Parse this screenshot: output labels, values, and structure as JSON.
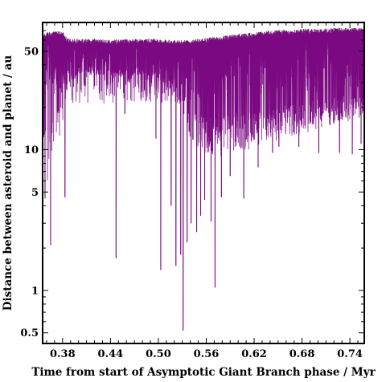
{
  "chart_data": {
    "type": "line",
    "title": "",
    "xlabel": "Time from start of Asymptotic Giant Branch phase / Myr",
    "ylabel": "Distance between asteroid and planet / au",
    "xlim": [
      0.355,
      0.758
    ],
    "ylim": [
      0.42,
      80
    ],
    "yscale": "log",
    "grid": false,
    "legend": "none",
    "x_ticks": [
      0.38,
      0.44,
      0.5,
      0.56,
      0.62,
      0.68,
      0.74
    ],
    "x_tick_labels": [
      "0.38",
      "0.44",
      "0.50",
      "0.56",
      "0.62",
      "0.68",
      "0.74"
    ],
    "y_ticks": [
      0.5,
      1,
      5,
      10,
      50
    ],
    "y_tick_labels": [
      "0.5",
      "1",
      "5",
      "10",
      "50"
    ],
    "series": [
      {
        "color": "#7b0a82",
        "envelope": {
          "x": [
            0.355,
            0.36,
            0.37,
            0.38,
            0.385,
            0.4,
            0.42,
            0.44,
            0.46,
            0.48,
            0.5,
            0.52,
            0.54,
            0.56,
            0.58,
            0.6,
            0.62,
            0.64,
            0.66,
            0.68,
            0.7,
            0.72,
            0.74,
            0.758
          ],
          "max": [
            65,
            68,
            69,
            70,
            62,
            61,
            61,
            60,
            61,
            61,
            61,
            60,
            60,
            62,
            64,
            66,
            68,
            70,
            71,
            72,
            72,
            73,
            73,
            73
          ],
          "min": [
            11,
            5,
            8,
            15,
            25,
            35,
            34,
            32,
            33,
            34,
            30,
            25,
            12,
            9,
            9,
            10,
            10,
            11,
            12,
            13,
            14,
            15,
            16,
            17
          ]
        },
        "dips": [
          {
            "x": 0.358,
            "y": 4.5
          },
          {
            "x": 0.365,
            "y": 2.1
          },
          {
            "x": 0.383,
            "y": 4.6
          },
          {
            "x": 0.447,
            "y": 1.7
          },
          {
            "x": 0.458,
            "y": 18
          },
          {
            "x": 0.497,
            "y": 12
          },
          {
            "x": 0.503,
            "y": 1.4
          },
          {
            "x": 0.516,
            "y": 4.0
          },
          {
            "x": 0.522,
            "y": 1.5
          },
          {
            "x": 0.528,
            "y": 1.8
          },
          {
            "x": 0.531,
            "y": 0.52
          },
          {
            "x": 0.536,
            "y": 2.2
          },
          {
            "x": 0.541,
            "y": 3.0
          },
          {
            "x": 0.548,
            "y": 2.6
          },
          {
            "x": 0.553,
            "y": 3.4
          },
          {
            "x": 0.558,
            "y": 4.4
          },
          {
            "x": 0.566,
            "y": 3.1
          },
          {
            "x": 0.571,
            "y": 1.05
          },
          {
            "x": 0.579,
            "y": 4.6
          },
          {
            "x": 0.59,
            "y": 6.5
          },
          {
            "x": 0.607,
            "y": 4.5
          },
          {
            "x": 0.625,
            "y": 7.5
          },
          {
            "x": 0.643,
            "y": 9.5
          },
          {
            "x": 0.651,
            "y": 10.5
          },
          {
            "x": 0.676,
            "y": 10.5
          },
          {
            "x": 0.701,
            "y": 9.5
          },
          {
            "x": 0.727,
            "y": 9.5
          },
          {
            "x": 0.743,
            "y": 9.3
          },
          {
            "x": 0.754,
            "y": 11
          }
        ]
      }
    ]
  }
}
